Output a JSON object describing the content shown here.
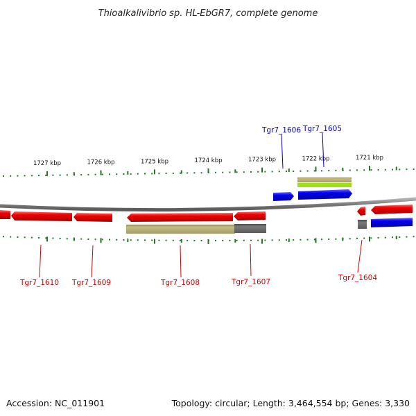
{
  "title": "Thioalkalivibrio sp. HL-EbGR7, complete genome",
  "footer": {
    "accession": "Accession: NC_011901",
    "topology": "Topology: circular; Length: 3,464,554 bp; Genes: 3,330"
  },
  "colors": {
    "forward_gene": "#0000ee",
    "reverse_gene": "#ee0000",
    "backbone": "#8a8a8a",
    "tick": "#1e7a1e",
    "feature_khaki": "#b8b07a",
    "feature_gray": "#707070",
    "feature_lime": "#9be01a",
    "forward_label": "#0000cc",
    "reverse_label": "#cc0000"
  },
  "scale_labels": [
    {
      "label": "1727 kbp",
      "kbp": 1727
    },
    {
      "label": "1726 kbp",
      "kbp": 1726
    },
    {
      "label": "1725 kbp",
      "kbp": 1725
    },
    {
      "label": "1724 kbp",
      "kbp": 1724
    },
    {
      "label": "1723 kbp",
      "kbp": 1723
    },
    {
      "label": "1722 kbp",
      "kbp": 1722
    },
    {
      "label": "1721 kbp",
      "kbp": 1721
    }
  ],
  "gene_labels": [
    {
      "id": "Tgr7_1606",
      "strand": "forward"
    },
    {
      "id": "Tgr7_1605",
      "strand": "forward"
    },
    {
      "id": "Tgr7_1610",
      "strand": "reverse"
    },
    {
      "id": "Tgr7_1609",
      "strand": "reverse"
    },
    {
      "id": "Tgr7_1608",
      "strand": "reverse"
    },
    {
      "id": "Tgr7_1607",
      "strand": "reverse"
    },
    {
      "id": "Tgr7_1604",
      "strand": "reverse"
    }
  ]
}
